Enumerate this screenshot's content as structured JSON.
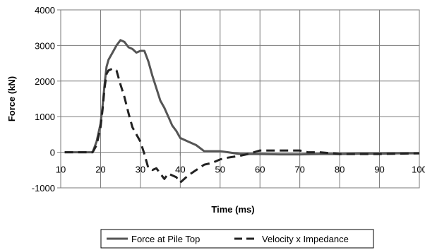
{
  "chart_data": {
    "type": "line",
    "title": "",
    "xlabel": "Time (ms)",
    "ylabel": "Force (kN)",
    "xlim": [
      10,
      100
    ],
    "ylim": [
      -1000,
      4000
    ],
    "xticks": [
      "10",
      "20",
      "30",
      "40",
      "50",
      "60",
      "70",
      "80",
      "90",
      "100"
    ],
    "yticks": [
      "4000",
      "3000",
      "2000",
      "1000",
      "0",
      "-1000"
    ],
    "grid": true,
    "legend_position": "bottom",
    "series": [
      {
        "name": "Force at Pile Top",
        "color": "#555555",
        "style": "solid",
        "x": [
          11,
          15,
          18,
          19,
          20,
          20.5,
          21,
          21.5,
          22,
          23,
          24,
          25,
          26,
          27,
          28,
          29,
          30,
          31,
          32,
          33,
          34,
          35,
          36,
          37,
          38,
          39,
          40,
          42,
          44,
          46,
          48,
          50,
          52,
          55,
          60,
          65,
          70,
          75,
          80,
          85,
          90,
          95,
          100
        ],
        "y": [
          0,
          0,
          0,
          300,
          800,
          1300,
          1900,
          2400,
          2600,
          2800,
          3000,
          3150,
          3100,
          2950,
          2900,
          2800,
          2850,
          2850,
          2550,
          2150,
          1800,
          1450,
          1250,
          1000,
          750,
          600,
          400,
          300,
          200,
          30,
          30,
          30,
          0,
          -50,
          -50,
          -60,
          -60,
          -50,
          -50,
          -40,
          -40,
          -30,
          -30
        ]
      },
      {
        "name": "Velocity x Impedance",
        "color": "#222222",
        "style": "dashed",
        "x": [
          11,
          15,
          18,
          19,
          20,
          20.5,
          21,
          21.5,
          22,
          23,
          24,
          25,
          26,
          27,
          28,
          29,
          30,
          31,
          32,
          33,
          34,
          35,
          36,
          37,
          38,
          39,
          40,
          42,
          44,
          46,
          48,
          50,
          52,
          55,
          57,
          60,
          63,
          65,
          70,
          72,
          75,
          80,
          85,
          90,
          95,
          100
        ],
        "y": [
          0,
          0,
          0,
          200,
          700,
          1200,
          1800,
          2200,
          2300,
          2350,
          2300,
          1900,
          1550,
          1100,
          700,
          500,
          300,
          -50,
          -450,
          -500,
          -450,
          -600,
          -750,
          -600,
          -650,
          -700,
          -850,
          -650,
          -500,
          -350,
          -300,
          -200,
          -150,
          -100,
          -50,
          50,
          50,
          50,
          50,
          0,
          0,
          -50,
          -50,
          -50,
          -40,
          -30
        ]
      }
    ]
  }
}
